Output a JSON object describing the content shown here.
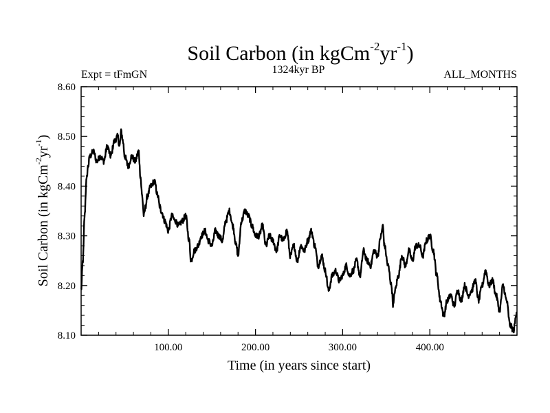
{
  "chart_data": {
    "type": "line",
    "title": {
      "main": "Soil Carbon (in kgCm",
      "sup1": "-2",
      "mid": "yr",
      "sup2": "-1",
      "end": ")"
    },
    "left_label": "Expt = tFmGN",
    "center_label": "1324kyr BP",
    "right_label": "ALL_MONTHS",
    "xlabel": "Time (in years since start)",
    "ylabel": {
      "main": "Soil Carbon (in kgCm",
      "sup1": "-2",
      "mid": "yr",
      "sup2": "-1",
      "end": ")"
    },
    "xlim": [
      0,
      500
    ],
    "ylim": [
      8.1,
      8.6
    ],
    "x_ticks": [
      100,
      200,
      300,
      400
    ],
    "x_tick_labels": [
      "100.00",
      "200.00",
      "300.00",
      "400.00"
    ],
    "y_ticks": [
      8.1,
      8.2,
      8.3,
      8.4,
      8.5,
      8.6
    ],
    "y_tick_labels": [
      "8.10",
      "8.20",
      "8.30",
      "8.40",
      "8.50",
      "8.60"
    ],
    "series": [
      {
        "name": "Soil Carbon",
        "color": "#000000",
        "x": [
          0,
          2,
          4,
          6,
          8,
          10,
          14,
          18,
          22,
          26,
          30,
          34,
          38,
          42,
          44,
          46,
          48,
          50,
          54,
          58,
          62,
          66,
          68,
          70,
          72,
          74,
          76,
          80,
          84,
          88,
          90,
          92,
          96,
          100,
          104,
          108,
          112,
          116,
          120,
          124,
          126,
          130,
          134,
          138,
          142,
          146,
          150,
          154,
          158,
          162,
          166,
          170,
          174,
          178,
          180,
          184,
          188,
          192,
          196,
          200,
          204,
          208,
          212,
          216,
          220,
          224,
          228,
          232,
          236,
          240,
          244,
          248,
          252,
          256,
          260,
          264,
          268,
          272,
          276,
          280,
          284,
          288,
          292,
          296,
          300,
          304,
          308,
          312,
          316,
          320,
          324,
          328,
          332,
          336,
          340,
          344,
          346,
          348,
          352,
          356,
          358,
          360,
          364,
          368,
          372,
          376,
          380,
          384,
          388,
          392,
          396,
          400,
          404,
          408,
          412,
          416,
          420,
          424,
          428,
          432,
          436,
          440,
          444,
          448,
          452,
          456,
          460,
          464,
          468,
          472,
          476,
          480,
          484,
          488,
          492,
          496,
          500
        ],
        "values": [
          8.19,
          8.25,
          8.34,
          8.41,
          8.44,
          8.46,
          8.47,
          8.45,
          8.46,
          8.45,
          8.48,
          8.46,
          8.49,
          8.5,
          8.48,
          8.51,
          8.49,
          8.46,
          8.44,
          8.46,
          8.45,
          8.47,
          8.42,
          8.38,
          8.34,
          8.36,
          8.38,
          8.4,
          8.41,
          8.38,
          8.36,
          8.35,
          8.33,
          8.31,
          8.34,
          8.33,
          8.32,
          8.33,
          8.34,
          8.29,
          8.25,
          8.27,
          8.28,
          8.3,
          8.31,
          8.29,
          8.28,
          8.31,
          8.3,
          8.29,
          8.33,
          8.35,
          8.32,
          8.28,
          8.26,
          8.33,
          8.35,
          8.34,
          8.32,
          8.3,
          8.3,
          8.32,
          8.28,
          8.3,
          8.29,
          8.27,
          8.3,
          8.29,
          8.31,
          8.26,
          8.28,
          8.25,
          8.28,
          8.27,
          8.29,
          8.31,
          8.28,
          8.24,
          8.26,
          8.23,
          8.19,
          8.22,
          8.23,
          8.21,
          8.22,
          8.24,
          8.22,
          8.23,
          8.25,
          8.22,
          8.27,
          8.25,
          8.24,
          8.27,
          8.26,
          8.3,
          8.32,
          8.28,
          8.24,
          8.2,
          8.16,
          8.19,
          8.22,
          8.26,
          8.24,
          8.27,
          8.25,
          8.28,
          8.28,
          8.26,
          8.29,
          8.3,
          8.27,
          8.22,
          8.17,
          8.14,
          8.17,
          8.18,
          8.16,
          8.19,
          8.17,
          8.2,
          8.18,
          8.19,
          8.21,
          8.17,
          8.2,
          8.23,
          8.2,
          8.21,
          8.18,
          8.15,
          8.2,
          8.17,
          8.12,
          8.11,
          8.15
        ]
      }
    ]
  }
}
